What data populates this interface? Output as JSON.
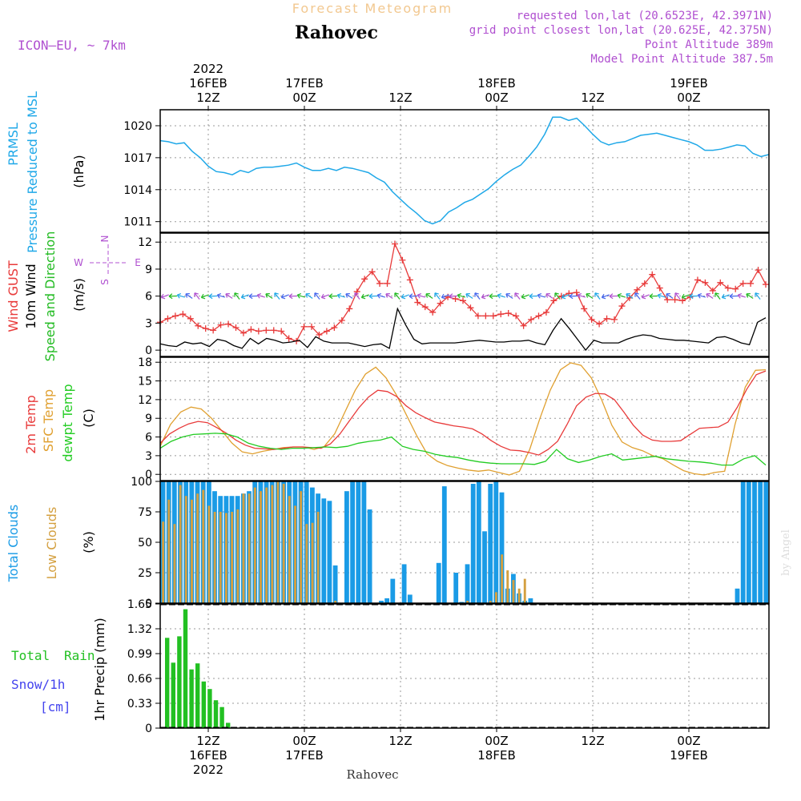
{
  "header": {
    "title": "Forecast Meteogram",
    "location": "Rahovec",
    "model": "ICON—EU, ~ 7km",
    "requested": "requested lon,lat (20.6523E, 42.3971N)",
    "grid_point": "grid point closest lon,lat (20.625E, 42.375N)",
    "point_altitude": "Point Altitude 389m",
    "model_altitude": "Model Point Altitude 387.5m",
    "footer_location": "Rahovec",
    "watermark": "by Angel"
  },
  "time_axis": {
    "year": "2022",
    "labels": [
      {
        "time": "12Z",
        "date": "16FEB",
        "hour": 12
      },
      {
        "time": "00Z",
        "date": "17FEB",
        "hour": 24
      },
      {
        "time": "12Z",
        "date": "",
        "hour": 36
      },
      {
        "time": "00Z",
        "date": "18FEB",
        "hour": 48
      },
      {
        "time": "12Z",
        "date": "",
        "hour": 60
      },
      {
        "time": "00Z",
        "date": "19FEB",
        "hour": 72
      }
    ],
    "start_hour": 6,
    "end_hour": 82
  },
  "colors": {
    "pressure": "#1fa8e8",
    "gust": "#e83a3a",
    "wind": "#000000",
    "direction": "#22bb22",
    "temp2m": "#e83a3a",
    "sfc": "#e0a030",
    "dewpt": "#22cc22",
    "total_clouds": "#1a9be6",
    "low_clouds": "#d4a040",
    "rain": "#22c022",
    "snow": "#4444ee",
    "purple": "#b050d0",
    "grid": "#999999"
  },
  "panels": {
    "pressure": {
      "label1": "PRMSL",
      "label2": "Pressure Reduced to MSL",
      "unit": "(hPa)",
      "ticks": [
        "1011",
        "1014",
        "1017",
        "1020"
      ]
    },
    "wind": {
      "label1": "Wind GUST",
      "label2": "10m Wind",
      "label3": "Speed and Direction",
      "unit": "(m/s)",
      "ticks": [
        "0",
        "3",
        "6",
        "9",
        "12"
      ],
      "compass_w": "W",
      "compass_e": "E",
      "compass_n": "N",
      "compass_s": "S"
    },
    "temp": {
      "label1": "2m Temp",
      "label2": "SFC Temp",
      "label3": "dewpt Temp",
      "unit": "(C)",
      "ticks": [
        "0",
        "3",
        "6",
        "9",
        "12",
        "15",
        "18"
      ]
    },
    "clouds": {
      "label1": "Total Clouds",
      "label2": "Low Clouds",
      "unit": "(%)",
      "ticks": [
        "0",
        "25",
        "50",
        "75",
        "100"
      ]
    },
    "precip": {
      "label1": "Total",
      "label2": "Rain",
      "label3": "Snow/1h",
      "label4": "[cm]",
      "unit": "1hr Precip (mm)",
      "ticks": [
        "0",
        "0.33",
        "0.66",
        "0.99",
        "1.32",
        "1.65"
      ]
    }
  },
  "chart_data": [
    {
      "type": "line",
      "series": [
        {
          "name": "PRMSL",
          "x": [
            6,
            7,
            8,
            9,
            10,
            11,
            12,
            13,
            14,
            15,
            16,
            17,
            18,
            19,
            20,
            21,
            22,
            23,
            24,
            25,
            26,
            27,
            28,
            29,
            30,
            31,
            32,
            33,
            34,
            35,
            36,
            37,
            38,
            39,
            40,
            41,
            42,
            43,
            44,
            45,
            46,
            47,
            48,
            49,
            50,
            51,
            52,
            53,
            54,
            55,
            56,
            57,
            58,
            59,
            60,
            61,
            62,
            63,
            64,
            65,
            66,
            67,
            68,
            69,
            70,
            71,
            72,
            73,
            74,
            75,
            76,
            77,
            78,
            79,
            80,
            81,
            82
          ],
          "values": [
            1018.6,
            1018.5,
            1018.3,
            1018.4,
            1017.6,
            1017.0,
            1016.2,
            1015.7,
            1015.6,
            1015.4,
            1015.8,
            1015.6,
            1016.0,
            1016.1,
            1016.1,
            1016.2,
            1016.3,
            1016.5,
            1016.1,
            1015.8,
            1015.8,
            1016.0,
            1015.8,
            1016.1,
            1016.0,
            1015.8,
            1015.6,
            1015.1,
            1014.7,
            1013.8,
            1013.1,
            1012.4,
            1011.8,
            1011.1,
            1010.8,
            1011.1,
            1011.9,
            1012.3,
            1012.8,
            1013.1,
            1013.6,
            1014.1,
            1014.8,
            1015.4,
            1015.9,
            1016.3,
            1017.1,
            1018.0,
            1019.2,
            1020.8,
            1020.8,
            1020.5,
            1020.7,
            1020.0,
            1019.2,
            1018.5,
            1018.2,
            1018.4,
            1018.5,
            1018.8,
            1019.1,
            1019.2,
            1019.3,
            1019.1,
            1018.9,
            1018.7,
            1018.5,
            1018.2,
            1017.7,
            1017.7,
            1017.8,
            1018.0,
            1018.2,
            1018.1,
            1017.4,
            1017.1,
            1017.3
          ]
        }
      ],
      "ylabel": "(hPa)",
      "ylim": [
        1010,
        1021.5
      ]
    },
    {
      "type": "line",
      "series": [
        {
          "name": "Wind GUST",
          "values": [
            3.1,
            3.5,
            3.8,
            4.0,
            3.5,
            2.7,
            2.4,
            2.2,
            2.8,
            2.9,
            2.5,
            1.9,
            2.3,
            2.1,
            2.2,
            2.2,
            2.1,
            1.3,
            1.0,
            2.6,
            2.6,
            1.7,
            2.1,
            2.5,
            3.3,
            4.6,
            6.5,
            7.9,
            8.7,
            7.4,
            7.4,
            11.8,
            10.0,
            7.8,
            5.3,
            4.8,
            4.2,
            5.2,
            5.9,
            5.7,
            5.5,
            4.7,
            3.8,
            3.8,
            3.8,
            4.0,
            4.1,
            3.8,
            2.7,
            3.4,
            3.8,
            4.2,
            5.5,
            6.0,
            6.3,
            6.4,
            4.6,
            3.4,
            2.9,
            3.5,
            3.4,
            4.9,
            5.8,
            6.7,
            7.4,
            8.4,
            6.9,
            5.6,
            5.6,
            5.5,
            5.9,
            7.8,
            7.5,
            6.6,
            7.5,
            6.9,
            6.8,
            7.4,
            7.4,
            8.9,
            7.3
          ]
        },
        {
          "name": "10m Wind",
          "values": [
            0.7,
            0.5,
            0.4,
            0.9,
            0.7,
            0.8,
            0.4,
            1.2,
            1.0,
            0.5,
            0.2,
            1.3,
            0.7,
            1.3,
            1.1,
            0.8,
            0.9,
            1.1,
            0.3,
            1.5,
            1.0,
            0.8,
            0.8,
            0.8,
            0.6,
            0.4,
            0.6,
            0.7,
            0.2,
            4.6,
            2.8,
            1.2,
            0.7,
            0.8,
            0.8,
            0.8,
            0.8,
            0.9,
            1.0,
            1.1,
            1.0,
            0.9,
            0.9,
            1.0,
            1.0,
            1.1,
            0.8,
            0.6,
            2.2,
            3.5,
            2.4,
            1.2,
            0.0,
            1.1,
            0.8,
            0.8,
            0.8,
            1.2,
            1.5,
            1.7,
            1.6,
            1.3,
            1.2,
            1.1,
            1.1,
            1.0,
            0.9,
            0.8,
            1.4,
            1.5,
            1.2,
            0.8,
            0.6,
            3.1,
            3.6
          ]
        }
      ],
      "ylabel": "(m/s)",
      "ylim": [
        -0.7,
        13
      ]
    },
    {
      "type": "line",
      "series": [
        {
          "name": "2m Temp",
          "values": [
            5.0,
            6.5,
            7.4,
            8.1,
            8.5,
            8.3,
            7.5,
            6.6,
            5.5,
            4.7,
            4.2,
            4.1,
            4.0,
            4.2,
            4.4,
            4.4,
            4.3,
            4.2,
            4.9,
            6.5,
            8.6,
            10.7,
            12.4,
            13.5,
            13.3,
            12.5,
            11.0,
            9.9,
            9.1,
            8.4,
            8.1,
            7.8,
            7.6,
            7.3,
            6.5,
            5.4,
            4.5,
            3.9,
            3.8,
            3.5,
            3.1,
            4.0,
            5.3,
            8.0,
            11.0,
            12.4,
            13.0,
            12.9,
            12.0,
            10.0,
            7.9,
            6.3,
            5.5,
            5.3,
            5.3,
            5.4,
            6.4,
            7.4,
            7.5,
            7.6,
            8.4,
            10.8,
            13.7,
            16.0,
            16.6
          ]
        },
        {
          "name": "SFC Temp",
          "values": [
            4.5,
            8.0,
            10.0,
            10.8,
            10.5,
            9.0,
            7.0,
            5.0,
            3.6,
            3.3,
            3.7,
            4.0,
            4.3,
            4.4,
            4.4,
            4.0,
            4.5,
            6.5,
            10.0,
            13.5,
            16.1,
            17.2,
            15.5,
            12.8,
            9.5,
            6.2,
            3.3,
            2.1,
            1.4,
            1.0,
            0.7,
            0.5,
            0.7,
            0.3,
            -0.1,
            0.5,
            4.0,
            9.0,
            13.5,
            16.8,
            17.9,
            17.5,
            15.5,
            12.0,
            7.9,
            5.2,
            4.3,
            3.8,
            3.0,
            2.5,
            1.5,
            0.6,
            0.1,
            -0.1,
            0.3,
            0.5,
            8.0,
            14.0,
            16.7,
            16.8
          ]
        },
        {
          "name": "dewpt Temp",
          "values": [
            4.2,
            5.3,
            6.0,
            6.4,
            6.5,
            6.6,
            6.5,
            6.0,
            5.0,
            4.5,
            4.2,
            4.0,
            4.2,
            4.2,
            4.3,
            4.4,
            4.3,
            4.5,
            5.0,
            5.3,
            5.5,
            6.0,
            4.5,
            4.0,
            3.7,
            3.2,
            2.9,
            2.7,
            2.3,
            2.0,
            1.8,
            1.7,
            1.7,
            1.7,
            1.6,
            2.1,
            4.0,
            2.5,
            1.9,
            2.3,
            2.9,
            3.3,
            2.3,
            2.5,
            2.7,
            2.9,
            2.5,
            2.3,
            2.1,
            2.0,
            1.8,
            1.5,
            1.5,
            2.5,
            3.0,
            1.5
          ]
        }
      ],
      "ylabel": "(C)",
      "ylim": [
        -1,
        18.8
      ]
    },
    {
      "type": "bar",
      "series": [
        {
          "name": "Total Clouds",
          "values": [
            100,
            100,
            100,
            100,
            100,
            100,
            100,
            100,
            100,
            92,
            88,
            88,
            88,
            88,
            90,
            92,
            100,
            100,
            100,
            100,
            100,
            100,
            100,
            100,
            100,
            100,
            95,
            90,
            86,
            84,
            31,
            0,
            92,
            100,
            100,
            100,
            77,
            0,
            2,
            4,
            20,
            0,
            32,
            7,
            0,
            0,
            0,
            0,
            33,
            96,
            0,
            25,
            1,
            32,
            98,
            100,
            59,
            98,
            100,
            91,
            12,
            24,
            8,
            2,
            4,
            0,
            0,
            0,
            0,
            0,
            0,
            0,
            0,
            0,
            0,
            0,
            0,
            0,
            0,
            0,
            0,
            0,
            0,
            0,
            0,
            0,
            0,
            0,
            0,
            0,
            0,
            0,
            0,
            0,
            0,
            0,
            0,
            0,
            0,
            0,
            12,
            100,
            100,
            100,
            100,
            100
          ]
        },
        {
          "name": "Low Clouds",
          "values": [
            67,
            85,
            65,
            97,
            88,
            85,
            90,
            93,
            80,
            75,
            75,
            74,
            75,
            77,
            90,
            90,
            95,
            92,
            95,
            97,
            100,
            98,
            88,
            80,
            92,
            65,
            66,
            75,
            0,
            0,
            2,
            0,
            0,
            0,
            0,
            0,
            0,
            0,
            0,
            0,
            0,
            0,
            0,
            0,
            0,
            0,
            0,
            0,
            0,
            0,
            0,
            0,
            0,
            2,
            0,
            0,
            0,
            2,
            9,
            40,
            27,
            19,
            12,
            20,
            0,
            0,
            0,
            0,
            0,
            0,
            0,
            0,
            0,
            0,
            0,
            0,
            0,
            0,
            0,
            0,
            0,
            0,
            0,
            0,
            0,
            0,
            0,
            0,
            0,
            0,
            0,
            0,
            0,
            0,
            0,
            0,
            0,
            0,
            0,
            0,
            0,
            0,
            0,
            0,
            0,
            0
          ]
        }
      ],
      "ylabel": "(%)",
      "ylim": [
        0,
        100
      ]
    },
    {
      "type": "bar",
      "series": [
        {
          "name": "Total Rain",
          "values": [
            1.2,
            0.87,
            1.22,
            1.58,
            0.78,
            0.86,
            0.62,
            0.52,
            0.37,
            0.28,
            0.07
          ]
        },
        {
          "name": "Snow/1h",
          "values": [
            0,
            0,
            0,
            0,
            0,
            0,
            0,
            0,
            0,
            0,
            0
          ]
        }
      ],
      "ylabel": "1hr Precip (mm)",
      "ylim": [
        0,
        1.65
      ]
    }
  ]
}
